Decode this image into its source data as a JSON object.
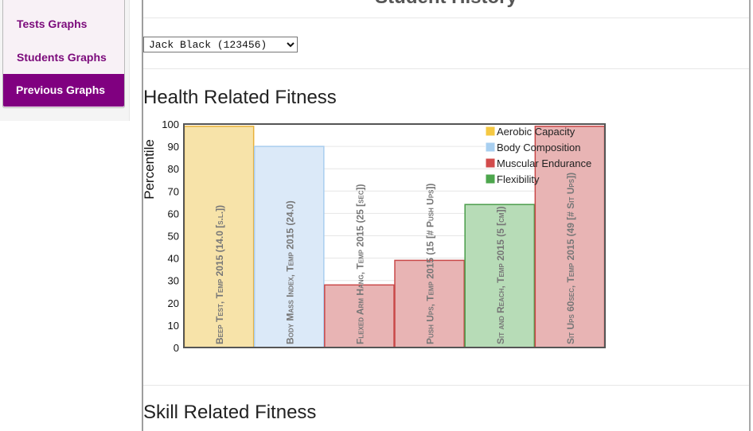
{
  "nav": {
    "items": [
      {
        "label": "Tests Graphs",
        "active": false
      },
      {
        "label": "Students Graphs",
        "active": false
      },
      {
        "label": "Previous Graphs",
        "active": true
      }
    ],
    "active_color": "#800080",
    "text_color": "#7b0a7b"
  },
  "page": {
    "title": "Student History",
    "student_select": {
      "selected": "Jack Black (123456)",
      "options": [
        "Jack Black (123456)"
      ]
    }
  },
  "sections": {
    "health": "Health Related Fitness",
    "skill": "Skill Related Fitness"
  },
  "chart_data": {
    "type": "bar",
    "ylabel": "Percentile",
    "ylim": [
      0,
      100
    ],
    "yticks": [
      0,
      10,
      20,
      30,
      40,
      50,
      60,
      70,
      80,
      90,
      100
    ],
    "grid": true,
    "legend_position": "top-right",
    "legend": [
      {
        "name": "Aerobic Capacity",
        "color": "#f5c842"
      },
      {
        "name": "Body Composition",
        "color": "#a8cff0"
      },
      {
        "name": "Muscular Endurance",
        "color": "#d24b4b"
      },
      {
        "name": "Flexibility",
        "color": "#4da64d"
      }
    ],
    "bars": [
      {
        "label": "Beep Test, Temp 2015 (14.0 [s.l.])",
        "value": 99,
        "category": "Aerobic Capacity",
        "fill": "#f7e3a9",
        "stroke": "#e8b23a"
      },
      {
        "label": "Body Mass Index, Temp 2015 (24.0)",
        "value": 90,
        "category": "Body Composition",
        "fill": "#dbe9f8",
        "stroke": "#a9cdef"
      },
      {
        "label": "Flexed Arm Hang, Temp 2015 (25 [sec])",
        "value": 28,
        "category": "Muscular Endurance",
        "fill": "#e8b4b4",
        "stroke": "#c94848"
      },
      {
        "label": "Push Ups, Temp 2015 (15 [# Push Ups])",
        "value": 39,
        "category": "Muscular Endurance",
        "fill": "#e8b4b4",
        "stroke": "#c94848"
      },
      {
        "label": "Sit and Reach, Temp 2015 (5 [cm])",
        "value": 64,
        "category": "Flexibility",
        "fill": "#b7dcb7",
        "stroke": "#4a9d4a"
      },
      {
        "label": "Sit Ups 60sec, Temp 2015 (49 [# Sit Ups])",
        "value": 99,
        "category": "Muscular Endurance",
        "fill": "#e8b4b4",
        "stroke": "#c94848"
      }
    ]
  }
}
